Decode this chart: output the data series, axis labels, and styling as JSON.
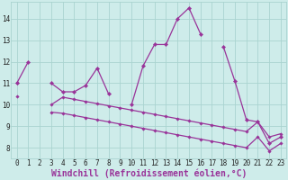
{
  "xlabel": "Windchill (Refroidissement éolien,°C)",
  "x": [
    0,
    1,
    2,
    3,
    4,
    5,
    6,
    7,
    8,
    9,
    10,
    11,
    12,
    13,
    14,
    15,
    16,
    17,
    18,
    19,
    20,
    21,
    22,
    23
  ],
  "line_main": [
    11.0,
    12.0,
    null,
    11.0,
    10.6,
    10.6,
    10.9,
    11.7,
    10.5,
    null,
    10.0,
    11.8,
    12.8,
    12.8,
    14.0,
    14.5,
    13.3,
    null,
    12.7,
    11.1,
    9.3,
    9.2,
    8.2,
    8.5
  ],
  "line_upper": [
    11.0,
    null,
    null,
    10.0,
    10.35,
    10.25,
    10.15,
    10.05,
    9.95,
    9.85,
    9.75,
    9.65,
    9.55,
    9.45,
    9.35,
    9.25,
    9.15,
    9.05,
    8.95,
    8.85,
    8.75,
    9.2,
    8.5,
    8.65
  ],
  "line_lower": [
    10.4,
    null,
    null,
    9.65,
    9.6,
    9.5,
    9.4,
    9.3,
    9.2,
    9.1,
    9.0,
    8.9,
    8.8,
    8.7,
    8.6,
    8.5,
    8.4,
    8.3,
    8.2,
    8.1,
    8.0,
    8.5,
    7.85,
    8.2
  ],
  "bg_color": "#ceecea",
  "grid_color": "#aad4d0",
  "line_color": "#993399",
  "ylim": [
    7.5,
    14.8
  ],
  "yticks": [
    8,
    9,
    10,
    11,
    12,
    13,
    14
  ],
  "xticks": [
    0,
    1,
    2,
    3,
    4,
    5,
    6,
    7,
    8,
    9,
    10,
    11,
    12,
    13,
    14,
    15,
    16,
    17,
    18,
    19,
    20,
    21,
    22,
    23
  ],
  "tick_fontsize": 5.5,
  "xlabel_fontsize": 7.0
}
